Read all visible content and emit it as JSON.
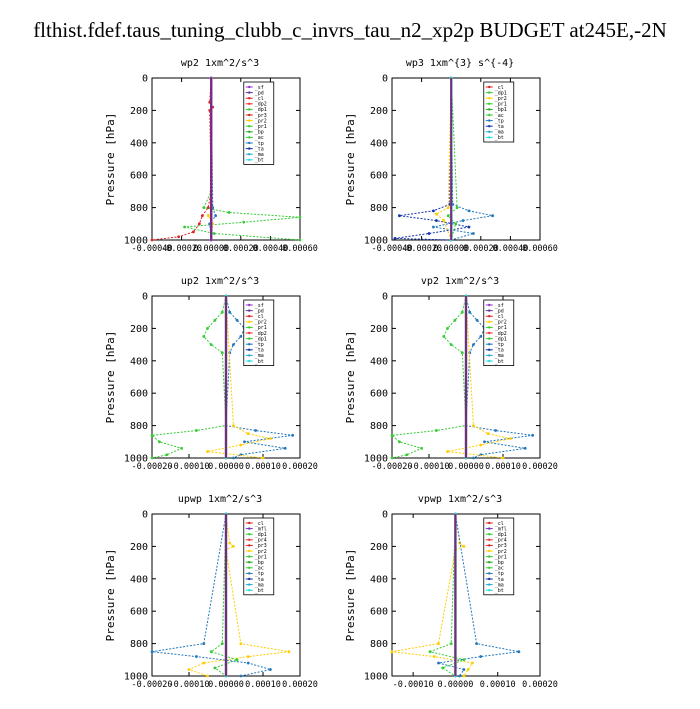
{
  "title": "flthist.fdef.taus_tuning_clubb_c_invrs_tau_n2_xp2p  BUDGET at245E,-2N",
  "chart_data": [
    {
      "type": "line",
      "title": "wp2  1xm^2/s^3",
      "ylabel": "Pressure [hPa]",
      "ylim": [
        1000,
        0
      ],
      "xlim": [
        -0.0004,
        0.0006
      ],
      "xticks": [
        "-0.00040",
        "-0.00020",
        "0.00000",
        "0.00020",
        "0.00040",
        "0.00060"
      ],
      "yticks": [
        "0",
        "200",
        "400",
        "600",
        "800",
        "1000"
      ],
      "legend": [
        "_sf",
        "_pd",
        "_cl",
        "_dp2",
        "_dp1",
        "_pr3",
        "_pr2",
        "_pr1",
        "_bp",
        "_ac",
        "_tp",
        "_ta",
        "_ma",
        "_bt"
      ],
      "series": [
        {
          "name": "_cl",
          "color": "#dd2222",
          "pressure": [
            0,
            150,
            180,
            200,
            700,
            800,
            850,
            900,
            950,
            980,
            1000
          ],
          "values": [
            0,
            -1e-05,
            1e-05,
            -1e-05,
            0,
            -2e-05,
            -6e-05,
            -8e-05,
            -0.00012,
            -0.00022,
            -0.0004
          ]
        },
        {
          "name": "_pr1",
          "color": "#33cc33",
          "pressure": [
            0,
            700,
            800,
            830,
            860,
            890,
            920,
            960,
            1000
          ],
          "values": [
            0,
            0,
            -5e-05,
            0.00012,
            0.0006,
            0.00022,
            -0.00018,
            2e-05,
            0.0006
          ]
        },
        {
          "name": "_pr2",
          "color": "#ffcc00",
          "pressure": [
            0,
            800,
            850,
            900,
            1000
          ],
          "values": [
            0,
            1e-05,
            -2e-05,
            1e-05,
            0
          ]
        },
        {
          "name": "_tp",
          "color": "#2277bb",
          "pressure": [
            0,
            800,
            850,
            900,
            1000
          ],
          "values": [
            0,
            1e-05,
            3e-05,
            -1e-05,
            0
          ]
        },
        {
          "name": "_bt",
          "color": "#22dddd",
          "pressure": [
            0,
            1000
          ],
          "values": [
            0,
            0
          ]
        },
        {
          "name": "_sf",
          "color": "#9933cc",
          "pressure": [
            0,
            1000
          ],
          "values": [
            0,
            0
          ]
        }
      ]
    },
    {
      "type": "line",
      "title": "wp3  1xm^{3} s^{-4}",
      "ylabel": "Pressure [hPa]",
      "ylim": [
        1000,
        0
      ],
      "xlim": [
        -0.0004,
        0.0006
      ],
      "xticks": [
        "-0.00040",
        "-0.00020",
        "0.00000",
        "0.00020",
        "0.00040",
        "0.00060"
      ],
      "yticks": [
        "0",
        "200",
        "400",
        "600",
        "800",
        "1000"
      ],
      "legend": [
        "_cl",
        "_dp1",
        "_pr2",
        "_pr1",
        "_bp1",
        "_ac",
        "_tp",
        "_ta",
        "_ma",
        "_bt"
      ],
      "series": [
        {
          "name": "_tp",
          "color": "#2277bb",
          "pressure": [
            0,
            780,
            820,
            850,
            880,
            920,
            960,
            1000
          ],
          "values": [
            0,
            1e-05,
            0.00012,
            0.00028,
            8e-05,
            -0.00012,
            0.00015,
            0
          ]
        },
        {
          "name": "_ta",
          "color": "#1133aa",
          "pressure": [
            0,
            780,
            820,
            850,
            880,
            920,
            960,
            990,
            1000
          ],
          "values": [
            0,
            -1e-05,
            -0.00012,
            -0.00035,
            -0.0001,
            0.00012,
            -0.00015,
            -0.00038,
            0
          ]
        },
        {
          "name": "_pr2",
          "color": "#ffcc00",
          "pressure": [
            0,
            800,
            840,
            880,
            1000
          ],
          "values": [
            0,
            -2e-05,
            -0.0001,
            -5e-05,
            0
          ]
        },
        {
          "name": "_pr1",
          "color": "#33cc33",
          "pressure": [
            0,
            800,
            850,
            900,
            1000
          ],
          "values": [
            0,
            4e-05,
            -2e-05,
            3e-05,
            0
          ]
        },
        {
          "name": "_cl",
          "color": "#dd2222",
          "pressure": [
            0,
            1000
          ],
          "values": [
            0,
            0
          ]
        },
        {
          "name": "_bt",
          "color": "#22dddd",
          "pressure": [
            0,
            1000
          ],
          "values": [
            0,
            0
          ]
        }
      ]
    },
    {
      "type": "line",
      "title": "up2  1xm^2/s^3",
      "ylabel": "Pressure [hPa]",
      "ylim": [
        1000,
        0
      ],
      "xlim": [
        -0.0002,
        0.0002
      ],
      "xticks": [
        "-0.00020",
        "-0.00010",
        "0.00000",
        "0.00010",
        "0.00020"
      ],
      "yticks": [
        "0",
        "200",
        "400",
        "600",
        "800",
        "1000"
      ],
      "legend": [
        "_sf",
        "_pd",
        "_cl",
        "_pr2",
        "_pr1",
        "_dp2",
        "_dp1",
        "_tp",
        "_ta",
        "_ma",
        "_bt"
      ],
      "series": [
        {
          "name": "_dp1",
          "color": "#33cc33",
          "pressure": [
            0,
            100,
            150,
            200,
            250,
            300,
            350,
            800,
            830,
            860,
            900,
            940,
            980,
            1000
          ],
          "values": [
            0,
            -1e-05,
            -3e-05,
            -5e-05,
            -6e-05,
            -4e-05,
            -1e-05,
            0,
            -8e-05,
            -0.0002,
            -0.00018,
            -0.00012,
            -0.00016,
            -0.0002
          ]
        },
        {
          "name": "_tp",
          "color": "#2277bb",
          "pressure": [
            0,
            100,
            150,
            200,
            250,
            300,
            350,
            800,
            830,
            860,
            900,
            940,
            980,
            1000
          ],
          "values": [
            0,
            1e-05,
            3e-05,
            5e-05,
            4e-05,
            2e-05,
            1e-05,
            0,
            8e-05,
            0.00018,
            5e-05,
            0.00016,
            4e-05,
            2e-05
          ]
        },
        {
          "name": "_pr2",
          "color": "#ffcc00",
          "pressure": [
            0,
            800,
            850,
            880,
            920,
            960,
            1000
          ],
          "values": [
            0,
            2e-05,
            6e-05,
            0.00012,
            4e-05,
            -5e-05,
            0.0001
          ]
        },
        {
          "name": "_cl",
          "color": "#dd2222",
          "pressure": [
            0,
            1000
          ],
          "values": [
            0,
            0
          ]
        },
        {
          "name": "_bt",
          "color": "#22dddd",
          "pressure": [
            0,
            1000
          ],
          "values": [
            0,
            0
          ]
        }
      ]
    },
    {
      "type": "line",
      "title": "vp2  1xm^2/s^3",
      "ylabel": "Pressure [hPa]",
      "ylim": [
        1000,
        0
      ],
      "xlim": [
        -0.0002,
        0.0002
      ],
      "xticks": [
        "-0.00020",
        "-0.00010",
        "0.00000",
        "0.00010",
        "0.00020"
      ],
      "yticks": [
        "0",
        "200",
        "400",
        "600",
        "800",
        "1000"
      ],
      "legend": [
        "_sf",
        "_pd",
        "_cl",
        "_pr2",
        "_pr1",
        "_dp2",
        "_dp1",
        "_tp",
        "_ta",
        "_ma",
        "_bt"
      ],
      "series": [
        {
          "name": "_dp1",
          "color": "#33cc33",
          "pressure": [
            0,
            100,
            150,
            200,
            250,
            300,
            350,
            800,
            830,
            860,
            900,
            940,
            980,
            1000
          ],
          "values": [
            0,
            -1e-05,
            -3e-05,
            -5e-05,
            -6e-05,
            -4e-05,
            -1e-05,
            0,
            -8e-05,
            -0.0002,
            -0.00018,
            -0.00012,
            -0.00016,
            -0.0002
          ]
        },
        {
          "name": "_tp",
          "color": "#2277bb",
          "pressure": [
            0,
            100,
            150,
            200,
            250,
            300,
            350,
            800,
            830,
            860,
            900,
            940,
            980,
            1000
          ],
          "values": [
            0,
            1e-05,
            3e-05,
            5e-05,
            4e-05,
            2e-05,
            1e-05,
            0,
            8e-05,
            0.00018,
            5e-05,
            0.00016,
            4e-05,
            2e-05
          ]
        },
        {
          "name": "_pr2",
          "color": "#ffcc00",
          "pressure": [
            0,
            800,
            850,
            880,
            920,
            960,
            1000
          ],
          "values": [
            0,
            2e-05,
            6e-05,
            0.00012,
            4e-05,
            -5e-05,
            0.0001
          ]
        },
        {
          "name": "_cl",
          "color": "#dd2222",
          "pressure": [
            0,
            1000
          ],
          "values": [
            0,
            0
          ]
        },
        {
          "name": "_bt",
          "color": "#22dddd",
          "pressure": [
            0,
            1000
          ],
          "values": [
            0,
            0
          ]
        }
      ]
    },
    {
      "type": "line",
      "title": "upwp  1xm^2/s^3",
      "ylabel": "Pressure [hPa]",
      "ylim": [
        1000,
        0
      ],
      "xlim": [
        -0.0002,
        0.0002
      ],
      "xticks": [
        "-0.00020",
        "-0.00010",
        "0.00000",
        "0.00010",
        "0.00020"
      ],
      "yticks": [
        "0",
        "200",
        "400",
        "600",
        "800",
        "1000"
      ],
      "legend": [
        "_cl",
        "_mfl",
        "_dp1",
        "_pr4",
        "_pr3",
        "_pr2",
        "_pr1",
        "_bp",
        "_ac",
        "_tp",
        "_ta",
        "_ma",
        "_bt"
      ],
      "series": [
        {
          "name": "_pr2",
          "color": "#ffcc00",
          "pressure": [
            0,
            180,
            200,
            220,
            800,
            850,
            880,
            920,
            960,
            1000
          ],
          "values": [
            0,
            1e-05,
            2e-05,
            0,
            4e-05,
            0.00017,
            6e-05,
            -6e-05,
            -0.0001,
            -5e-05
          ]
        },
        {
          "name": "_tp",
          "color": "#2277bb",
          "pressure": [
            0,
            800,
            850,
            880,
            920,
            960,
            1000
          ],
          "values": [
            0,
            -6e-05,
            -0.0002,
            -8e-05,
            6e-05,
            0.00012,
            4e-05
          ]
        },
        {
          "name": "_pr1",
          "color": "#33cc33",
          "pressure": [
            0,
            800,
            850,
            900,
            950,
            1000
          ],
          "values": [
            0,
            -1e-05,
            -4e-05,
            3e-05,
            -3e-05,
            0
          ]
        },
        {
          "name": "_cl",
          "color": "#dd2222",
          "pressure": [
            0,
            1000
          ],
          "values": [
            0,
            0
          ]
        },
        {
          "name": "_bt",
          "color": "#22dddd",
          "pressure": [
            0,
            1000
          ],
          "values": [
            0,
            0
          ]
        }
      ]
    },
    {
      "type": "line",
      "title": "vpwp  1xm^2/s^3",
      "ylabel": "Pressure [hPa]",
      "ylim": [
        1000,
        0
      ],
      "xlim": [
        -0.00015,
        0.0002
      ],
      "xticks": [
        "-0.00010",
        "0.00000",
        "0.00010",
        "0.00020"
      ],
      "yticks": [
        "0",
        "200",
        "400",
        "600",
        "800",
        "1000"
      ],
      "legend": [
        "_cl",
        "_mfl",
        "_dp1",
        "_pr4",
        "_pr3",
        "_pr2",
        "_pr1",
        "_bp",
        "_ac",
        "_tp",
        "_ta",
        "_ma",
        "_bt"
      ],
      "series": [
        {
          "name": "_pr2",
          "color": "#ffcc00",
          "pressure": [
            0,
            180,
            200,
            220,
            800,
            850,
            880,
            920,
            960,
            1000
          ],
          "values": [
            0,
            1e-05,
            2e-05,
            0,
            -4e-05,
            -0.00015,
            -5e-05,
            4e-05,
            3e-05,
            2e-05
          ]
        },
        {
          "name": "_tp",
          "color": "#2277bb",
          "pressure": [
            0,
            800,
            850,
            880,
            920,
            960,
            1000
          ],
          "values": [
            0,
            5e-05,
            0.00015,
            6e-05,
            -4e-05,
            2e-05,
            1e-05
          ]
        },
        {
          "name": "_pr1",
          "color": "#33cc33",
          "pressure": [
            0,
            800,
            850,
            900,
            950,
            1000
          ],
          "values": [
            0,
            -1e-05,
            -6e-05,
            2e-05,
            -3e-05,
            0
          ]
        },
        {
          "name": "_cl",
          "color": "#dd2222",
          "pressure": [
            0,
            1000
          ],
          "values": [
            0,
            0
          ]
        },
        {
          "name": "_bt",
          "color": "#22dddd",
          "pressure": [
            0,
            1000
          ],
          "values": [
            0,
            0
          ]
        }
      ]
    }
  ]
}
